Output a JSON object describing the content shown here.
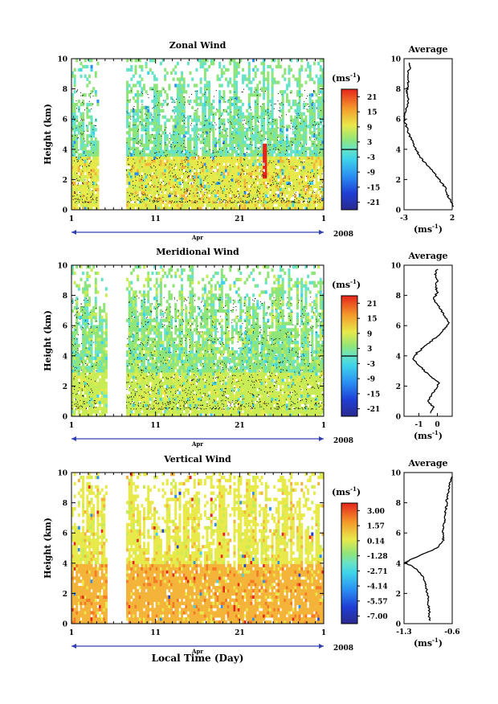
{
  "figure": {
    "xlabel": "Local Time (Day)",
    "unit_label": "(ms",
    "unit_exp": "-1",
    "unit_close": ")",
    "month": "Apr",
    "year": "2008"
  },
  "chart_data": [
    {
      "type": "heatmap",
      "title": "Zonal Wind",
      "ylabel": "Height (km)",
      "ylim": [
        0,
        10
      ],
      "yticks": [
        "0",
        "2",
        "4",
        "6",
        "8",
        "10"
      ],
      "xticks": [
        "1",
        "11",
        "21",
        "1"
      ],
      "colorbar": {
        "range": [
          -24,
          24
        ],
        "ticks": [
          "21",
          "15",
          "9",
          "3",
          "-3",
          "-9",
          "-15",
          "-21"
        ]
      },
      "average": {
        "title": "Average",
        "xlim": [
          -3,
          2
        ],
        "xticks": [
          "-3",
          "2"
        ],
        "yticks": [
          "0",
          "2",
          "4",
          "6",
          "8",
          "10"
        ],
        "profile": [
          {
            "h": 0.2,
            "v": 2.1
          },
          {
            "h": 0.6,
            "v": 1.8
          },
          {
            "h": 1.0,
            "v": 1.5
          },
          {
            "h": 1.4,
            "v": 1.3
          },
          {
            "h": 1.8,
            "v": 0.9
          },
          {
            "h": 2.2,
            "v": 0.4
          },
          {
            "h": 2.6,
            "v": -0.1
          },
          {
            "h": 3.0,
            "v": -0.7
          },
          {
            "h": 3.4,
            "v": -1.2
          },
          {
            "h": 3.8,
            "v": -1.6
          },
          {
            "h": 4.2,
            "v": -1.9
          },
          {
            "h": 4.6,
            "v": -2.2
          },
          {
            "h": 5.0,
            "v": -2.5
          },
          {
            "h": 5.4,
            "v": -2.7
          },
          {
            "h": 5.8,
            "v": -2.9
          },
          {
            "h": 6.2,
            "v": -3.0
          },
          {
            "h": 6.6,
            "v": -2.8
          },
          {
            "h": 7.0,
            "v": -2.6
          },
          {
            "h": 7.4,
            "v": -2.6
          },
          {
            "h": 7.8,
            "v": -2.7
          },
          {
            "h": 8.2,
            "v": -2.6
          },
          {
            "h": 8.6,
            "v": -2.5
          },
          {
            "h": 9.0,
            "v": -2.6
          },
          {
            "h": 9.4,
            "v": -2.4
          },
          {
            "h": 9.8,
            "v": -2.5
          }
        ]
      }
    },
    {
      "type": "heatmap",
      "title": "Meridional Wind",
      "ylabel": "Height (km)",
      "ylim": [
        0,
        10
      ],
      "yticks": [
        "0",
        "2",
        "4",
        "6",
        "8",
        "10"
      ],
      "xticks": [
        "1",
        "11",
        "21",
        "1"
      ],
      "colorbar": {
        "range": [
          -24,
          24
        ],
        "ticks": [
          "21",
          "15",
          "9",
          "3",
          "-3",
          "-9",
          "-15",
          "-21"
        ]
      },
      "average": {
        "title": "Average",
        "xlim": [
          -1.8,
          0.8
        ],
        "xticks": [
          "-1",
          "0"
        ],
        "yticks": [
          "0",
          "2",
          "4",
          "6",
          "8",
          "10"
        ],
        "profile": [
          {
            "h": 0.2,
            "v": -0.4
          },
          {
            "h": 0.6,
            "v": -0.2
          },
          {
            "h": 1.0,
            "v": -0.5
          },
          {
            "h": 1.4,
            "v": -0.3
          },
          {
            "h": 1.8,
            "v": -0.1
          },
          {
            "h": 2.2,
            "v": 0.1
          },
          {
            "h": 2.6,
            "v": -0.3
          },
          {
            "h": 3.0,
            "v": -0.7
          },
          {
            "h": 3.4,
            "v": -1.0
          },
          {
            "h": 3.8,
            "v": -1.3
          },
          {
            "h": 4.2,
            "v": -1.1
          },
          {
            "h": 4.6,
            "v": -0.7
          },
          {
            "h": 5.0,
            "v": -0.3
          },
          {
            "h": 5.4,
            "v": 0.1
          },
          {
            "h": 5.8,
            "v": 0.4
          },
          {
            "h": 6.2,
            "v": 0.6
          },
          {
            "h": 6.6,
            "v": 0.4
          },
          {
            "h": 7.0,
            "v": 0.2
          },
          {
            "h": 7.4,
            "v": 0.0
          },
          {
            "h": 7.8,
            "v": -0.2
          },
          {
            "h": 8.2,
            "v": 0.0
          },
          {
            "h": 8.6,
            "v": -0.1
          },
          {
            "h": 9.0,
            "v": 0.0
          },
          {
            "h": 9.4,
            "v": -0.1
          },
          {
            "h": 9.8,
            "v": 0.0
          }
        ]
      }
    },
    {
      "type": "heatmap",
      "title": "Vertical Wind",
      "ylabel": "Height (km)",
      "ylim": [
        0,
        10
      ],
      "yticks": [
        "0",
        "2",
        "4",
        "6",
        "8",
        "10"
      ],
      "xticks": [
        "1",
        "11",
        "21",
        "1"
      ],
      "colorbar": {
        "range": [
          -8.0,
          3.5
        ],
        "ticks": [
          "3.00",
          "1.57",
          "0.14",
          "-1.28",
          "-2.71",
          "-4.14",
          "-5.57",
          "-7.00"
        ]
      },
      "average": {
        "title": "Average",
        "xlim": [
          -1.3,
          -0.6
        ],
        "xticks": [
          "-1.3",
          "-0.6"
        ],
        "yticks": [
          "0",
          "2",
          "4",
          "6",
          "8",
          "10"
        ],
        "profile": [
          {
            "h": 0.2,
            "v": -0.92
          },
          {
            "h": 0.6,
            "v": -0.94
          },
          {
            "h": 1.0,
            "v": -0.93
          },
          {
            "h": 1.4,
            "v": -0.96
          },
          {
            "h": 1.8,
            "v": -0.95
          },
          {
            "h": 2.2,
            "v": -0.97
          },
          {
            "h": 2.6,
            "v": -0.98
          },
          {
            "h": 3.0,
            "v": -1.01
          },
          {
            "h": 3.4,
            "v": -1.07
          },
          {
            "h": 3.8,
            "v": -1.18
          },
          {
            "h": 4.0,
            "v": -1.29
          },
          {
            "h": 4.2,
            "v": -1.22
          },
          {
            "h": 4.6,
            "v": -1.02
          },
          {
            "h": 5.0,
            "v": -0.82
          },
          {
            "h": 5.4,
            "v": -0.74
          },
          {
            "h": 5.8,
            "v": -0.72
          },
          {
            "h": 6.2,
            "v": -0.74
          },
          {
            "h": 6.6,
            "v": -0.72
          },
          {
            "h": 7.0,
            "v": -0.7
          },
          {
            "h": 7.4,
            "v": -0.7
          },
          {
            "h": 7.8,
            "v": -0.68
          },
          {
            "h": 8.2,
            "v": -0.68
          },
          {
            "h": 8.6,
            "v": -0.66
          },
          {
            "h": 9.0,
            "v": -0.65
          },
          {
            "h": 9.4,
            "v": -0.62
          },
          {
            "h": 9.8,
            "v": -0.6
          }
        ]
      }
    }
  ]
}
